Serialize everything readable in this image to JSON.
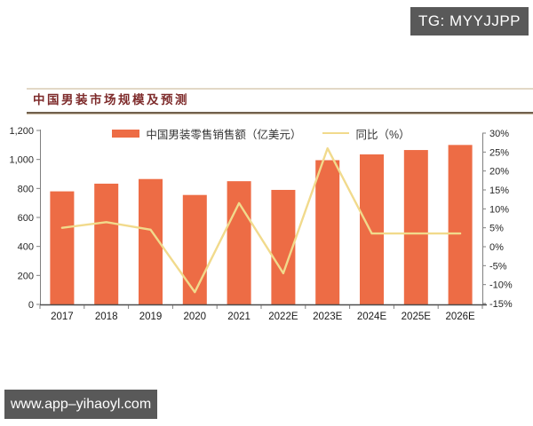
{
  "watermarks": {
    "tg": "TG: MYYJJPP",
    "site": "www.app–yihaoyl.com"
  },
  "section": {
    "title": "中国男装市场规模及预测"
  },
  "chart_data": {
    "type": "bar",
    "title": "中国男装市场规模及预测",
    "categories": [
      "2017",
      "2018",
      "2019",
      "2020",
      "2021",
      "2022E",
      "2023E",
      "2024E",
      "2025E",
      "2026E"
    ],
    "series": [
      {
        "name": "中国男装零售销售额（亿美元）",
        "type": "bar",
        "axis": "left",
        "color": "#ED6C45",
        "values": [
          780,
          833,
          865,
          755,
          850,
          790,
          995,
          1035,
          1065,
          1100
        ]
      },
      {
        "name": "同比（%）",
        "type": "line",
        "axis": "right",
        "color": "#F1DA8C",
        "values": [
          5,
          6.5,
          4.5,
          -12,
          11.5,
          -7,
          26,
          3.5,
          3.5,
          3.5
        ]
      }
    ],
    "left_axis": {
      "min": 0,
      "max": 1200,
      "tick_step": 200,
      "tick_labels": [
        "0",
        "200",
        "400",
        "600",
        "800",
        "1,000",
        "1,200"
      ]
    },
    "right_axis": {
      "min": -15,
      "max": 30,
      "tick_step": 5,
      "tick_labels": [
        "-15%",
        "-10%",
        "-5%",
        "0%",
        "5%",
        "10%",
        "15%",
        "20%",
        "25%",
        "30%"
      ]
    },
    "legend_position": "top-center",
    "grid": false,
    "axis_color": "#808080",
    "baseline_color": "#4D4D4D",
    "tick_label_color": "#262626"
  }
}
